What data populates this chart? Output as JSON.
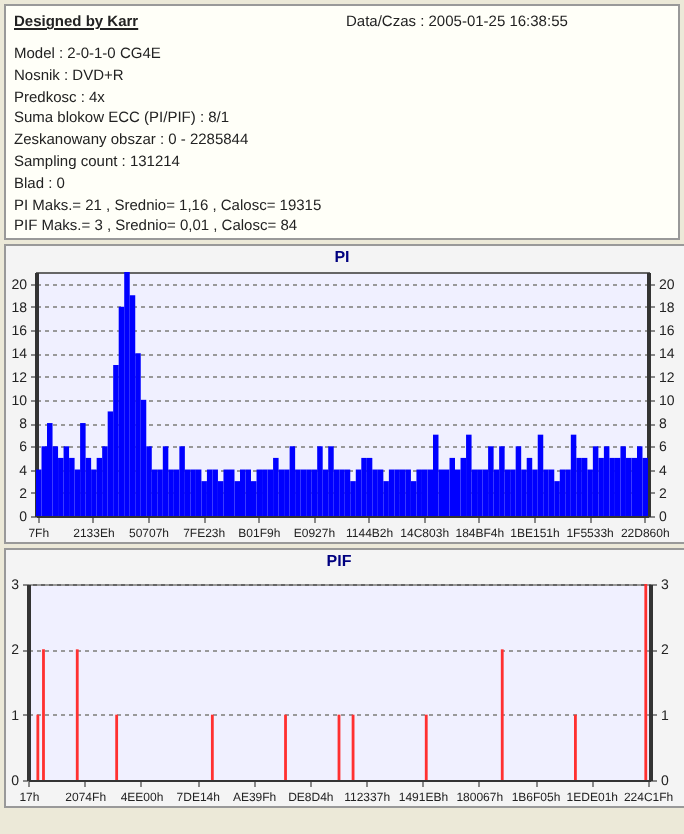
{
  "chart_data": [
    {
      "type": "other",
      "title": "Designed by Karr",
      "subtitle": "Data/Czas : 2005-01-25 16:38:55",
      "annotations": [
        "Model : 2-0-1-0 CG4E",
        "Nosnik : DVD+R",
        "Predkosc : 4x",
        "Suma blokow ECC (PI/PIF) : 8/1",
        "Zeskanowany obszar : 0 - 2285844",
        "Sampling count : 131214",
        "Blad : 0",
        "PI Maks.= 21 , Srednio= 1,16 , Calosc= 19315",
        "PIF Maks.= 3 , Srednio= 0,01 , Calosc= 84"
      ]
    },
    {
      "type": "bar",
      "title": "PI",
      "color": "#0000ff",
      "grid": "y",
      "line_style": "dashed",
      "categories": [
        "7Fh",
        null,
        null,
        null,
        null,
        null,
        null,
        null,
        null,
        null,
        "2133Eh",
        null,
        null,
        null,
        null,
        null,
        null,
        null,
        null,
        null,
        "50707h",
        null,
        null,
        null,
        null,
        null,
        null,
        null,
        null,
        null,
        "7FE23h",
        null,
        null,
        null,
        null,
        null,
        null,
        null,
        null,
        null,
        "B01F9h",
        null,
        null,
        null,
        null,
        null,
        null,
        null,
        null,
        null,
        "E0927h",
        null,
        null,
        null,
        null,
        null,
        null,
        null,
        null,
        null,
        "1144B2h",
        null,
        null,
        null,
        null,
        null,
        null,
        null,
        null,
        null,
        "14C803h",
        null,
        null,
        null,
        null,
        null,
        null,
        null,
        null,
        null,
        "184BF4h",
        null,
        null,
        null,
        null,
        null,
        null,
        null,
        null,
        null,
        "1BE151h",
        null,
        null,
        null,
        null,
        null,
        null,
        null,
        null,
        null,
        "1F5533h",
        null,
        null,
        null,
        null,
        null,
        null,
        null,
        null,
        null,
        "22D860h"
      ],
      "values": [
        4,
        6,
        8,
        6,
        5,
        6,
        5,
        4,
        8,
        5,
        4,
        5,
        6,
        9,
        13,
        18,
        21,
        19,
        14,
        10,
        6,
        4,
        4,
        6,
        4,
        4,
        6,
        4,
        4,
        4,
        3,
        4,
        4,
        3,
        4,
        4,
        3,
        4,
        4,
        3,
        4,
        4,
        4,
        5,
        4,
        4,
        6,
        4,
        4,
        4,
        4,
        6,
        4,
        6,
        4,
        4,
        4,
        3,
        4,
        5,
        5,
        4,
        4,
        3,
        4,
        4,
        4,
        4,
        3,
        4,
        4,
        4,
        7,
        4,
        4,
        5,
        4,
        5,
        7,
        4,
        4,
        4,
        6,
        4,
        6,
        4,
        4,
        6,
        4,
        5,
        4,
        7,
        4,
        4,
        3,
        4,
        4,
        7,
        5,
        5,
        4,
        6,
        5,
        6,
        5,
        5,
        6,
        5,
        5,
        6,
        5
      ],
      "ylim": [
        0,
        21
      ],
      "yticks": [
        0,
        2,
        4,
        6,
        8,
        10,
        12,
        14,
        16,
        18,
        20
      ],
      "y2lim": [
        0,
        21
      ],
      "y2ticks": [
        0,
        2,
        4,
        6,
        8,
        10,
        12,
        14,
        16,
        18,
        20
      ]
    },
    {
      "type": "bar",
      "title": "PIF",
      "color": "#ff3030",
      "grid": "y",
      "line_style": "dashed",
      "categories": [
        "17h",
        null,
        null,
        null,
        null,
        null,
        null,
        null,
        null,
        null,
        null,
        null,
        null,
        null,
        null,
        null,
        null,
        null,
        null,
        null,
        "2074Fh",
        null,
        null,
        null,
        null,
        null,
        null,
        null,
        null,
        null,
        null,
        null,
        null,
        null,
        null,
        null,
        null,
        null,
        null,
        null,
        "4EE00h",
        null,
        null,
        null,
        null,
        null,
        null,
        null,
        null,
        null,
        null,
        null,
        null,
        null,
        null,
        null,
        null,
        null,
        null,
        null,
        "7DE14h",
        null,
        null,
        null,
        null,
        null,
        null,
        null,
        null,
        null,
        null,
        null,
        null,
        null,
        null,
        null,
        null,
        null,
        null,
        null,
        "AE39Fh",
        null,
        null,
        null,
        null,
        null,
        null,
        null,
        null,
        null,
        null,
        null,
        null,
        null,
        null,
        null,
        null,
        null,
        null,
        null,
        "DE8D4h",
        null,
        null,
        null,
        null,
        null,
        null,
        null,
        null,
        null,
        null,
        null,
        null,
        null,
        null,
        null,
        null,
        null,
        null,
        null,
        "112337h",
        null,
        null,
        null,
        null,
        null,
        null,
        null,
        null,
        null,
        null,
        null,
        null,
        null,
        null,
        null,
        null,
        null,
        null,
        null,
        "1491EBh",
        null,
        null,
        null,
        null,
        null,
        null,
        null,
        null,
        null,
        null,
        null,
        null,
        null,
        null,
        null,
        null,
        null,
        null,
        null,
        "180067h",
        null,
        null,
        null,
        null,
        null,
        null,
        null,
        null,
        null,
        null,
        null,
        null,
        null,
        null,
        null,
        null,
        null,
        null,
        null,
        "1B6F05h",
        null,
        null,
        null,
        null,
        null,
        null,
        null,
        null,
        null,
        null,
        null,
        null,
        null,
        null,
        null,
        null,
        null,
        null,
        null,
        "1EDE01h",
        null,
        null,
        null,
        null,
        null,
        null,
        null,
        null,
        null,
        null,
        null,
        null,
        null,
        null,
        null,
        null,
        null,
        null,
        null,
        "224C1Fh"
      ],
      "values": [
        0,
        0,
        0,
        1,
        0,
        2,
        0,
        0,
        0,
        0,
        0,
        0,
        0,
        0,
        0,
        0,
        0,
        2,
        0,
        0,
        0,
        0,
        0,
        0,
        0,
        0,
        0,
        0,
        0,
        0,
        0,
        1,
        0,
        0,
        0,
        0,
        0,
        0,
        0,
        0,
        0,
        0,
        0,
        0,
        0,
        0,
        0,
        0,
        0,
        0,
        0,
        0,
        0,
        0,
        0,
        0,
        0,
        0,
        0,
        0,
        0,
        0,
        0,
        0,
        0,
        1,
        0,
        0,
        0,
        0,
        0,
        0,
        0,
        0,
        0,
        0,
        0,
        0,
        0,
        0,
        0,
        0,
        0,
        0,
        0,
        0,
        0,
        0,
        0,
        0,
        0,
        1,
        0,
        0,
        0,
        0,
        0,
        0,
        0,
        0,
        0,
        0,
        0,
        0,
        0,
        0,
        0,
        0,
        0,
        0,
        1,
        0,
        0,
        0,
        0,
        1,
        0,
        0,
        0,
        0,
        0,
        0,
        0,
        0,
        0,
        0,
        0,
        0,
        0,
        0,
        0,
        0,
        0,
        0,
        0,
        0,
        0,
        0,
        0,
        0,
        0,
        1,
        0,
        0,
        0,
        0,
        0,
        0,
        0,
        0,
        0,
        0,
        0,
        0,
        0,
        0,
        0,
        0,
        0,
        0,
        0,
        0,
        0,
        0,
        0,
        0,
        0,
        0,
        2,
        0,
        0,
        0,
        0,
        0,
        0,
        0,
        0,
        0,
        0,
        0,
        0,
        0,
        0,
        0,
        0,
        0,
        0,
        0,
        0,
        0,
        0,
        0,
        0,
        0,
        1,
        0,
        0,
        0,
        0,
        0,
        0,
        0,
        0,
        0,
        0,
        0,
        0,
        0,
        0,
        0,
        0,
        0,
        0,
        0,
        0,
        0,
        0,
        0,
        0,
        3,
        0
      ],
      "ylim": [
        0,
        3
      ],
      "yticks": [
        0,
        1,
        2,
        3
      ],
      "y2lim": [
        0,
        3
      ],
      "y2ticks": [
        0,
        1,
        2,
        3
      ]
    }
  ]
}
